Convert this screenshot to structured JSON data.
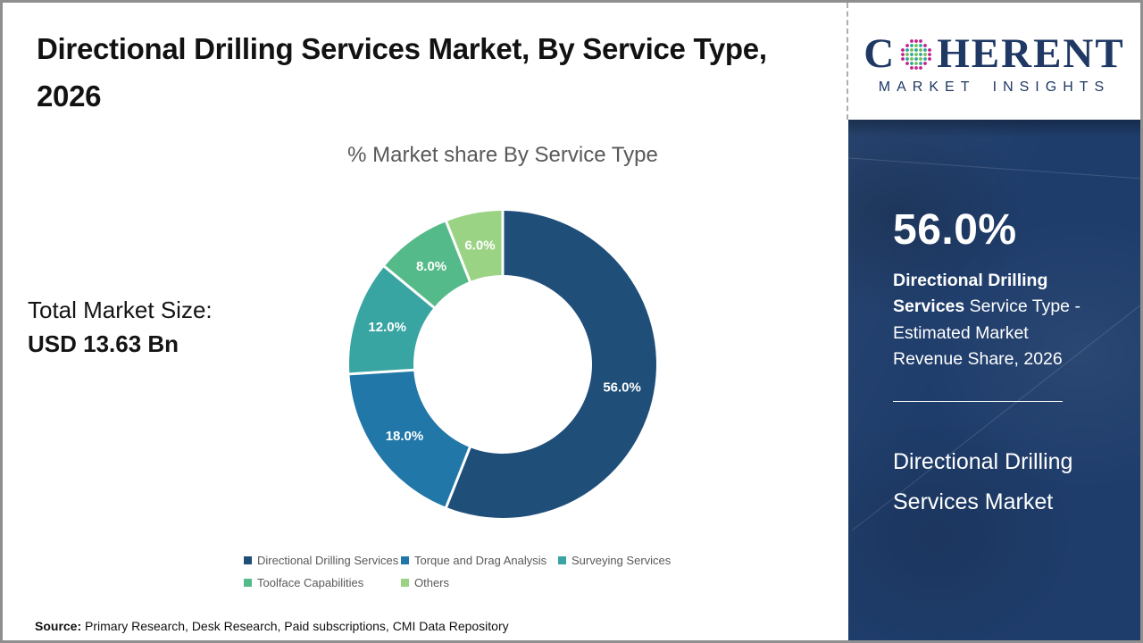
{
  "header": {
    "title": "Directional Drilling Services Market, By Service Type, 2026"
  },
  "left_panel": {
    "total_label": "Total Market Size:",
    "total_value": "USD 13.63 Bn"
  },
  "chart_data": {
    "type": "pie",
    "donut": true,
    "title": "% Market share By Service Type",
    "categories": [
      "Directional Drilling Services",
      "Torque and Drag Analysis",
      "Surveying Services",
      "Toolface Capabilities",
      "Others"
    ],
    "values": [
      56.0,
      18.0,
      12.0,
      8.0,
      6.0
    ],
    "labels": [
      "56.0%",
      "18.0%",
      "12.0%",
      "8.0%",
      "6.0%"
    ],
    "colors": [
      "#1F4E79",
      "#2077A8",
      "#39A5A2",
      "#55BA8A",
      "#9BD385"
    ],
    "start_angle_deg": 0,
    "direction": "clockwise",
    "legend_position": "bottom"
  },
  "sidebar": {
    "logo": {
      "part1": "C",
      "part2": "HERENT",
      "tagline": "MARKET INSIGHTS",
      "globe_colors": {
        "teal": "#2AA79F",
        "green": "#76BD4E",
        "magenta": "#C2208E"
      },
      "brand_navy": "#1F3864"
    },
    "panel_color": "#1F3D6B",
    "stat_value": "56.0%",
    "stat_desc_bold": "Directional Drilling Services",
    "stat_desc_rest": " Service Type - Estimated Market Revenue Share, 2026",
    "market_name": "Directional Drilling Services Market"
  },
  "footer": {
    "source_label": "Source:",
    "source_text": " Primary Research, Desk Research, Paid subscriptions, CMI Data Repository"
  }
}
